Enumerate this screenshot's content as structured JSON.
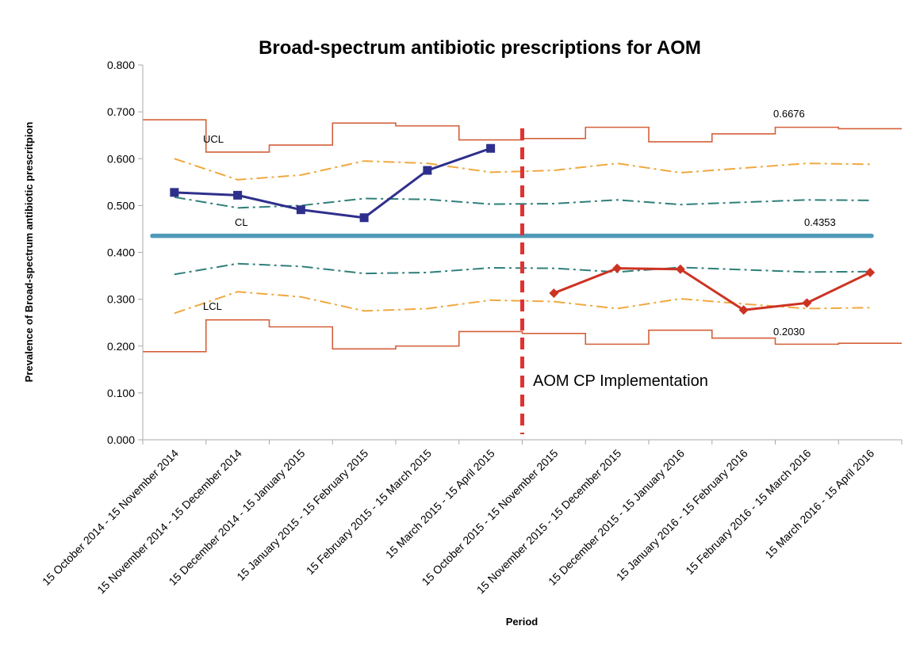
{
  "chart_data": {
    "type": "line",
    "title": "Broad-spectrum antibiotic prescriptions for AOM",
    "xlabel": "Period",
    "ylabel": "Prevalence of Broad-spectrum antibiotic prescritpion",
    "ylim": [
      0,
      0.8
    ],
    "ytick_step": 0.1,
    "y_tick_decimals": 3,
    "grid": false,
    "categories": [
      "15 October 2014 - 15 November 2014",
      "15 November 2014 - 15 December 2014",
      "15 December 2014 - 15 January 2015",
      "15 January 2015 - 15 February 2015",
      "15 February 2015 - 15 March 2015",
      "15 March 2015 - 15 April 2015",
      "15 October 2015 - 15 November 2015",
      "15 November 2015 - 15 December 2015",
      "15 December 2015 - 15 January 2016",
      "15 January 2016 - 15 February 2016",
      "15 February 2016 - 15 March 2016",
      "15 March 2016 - 15 April 2016"
    ],
    "series": [
      {
        "key": "pre",
        "role": "data",
        "color": "#2e2f8c",
        "marker": "square",
        "values": [
          0.528,
          0.522,
          0.491,
          0.474,
          0.575,
          0.622,
          null,
          null,
          null,
          null,
          null,
          null
        ]
      },
      {
        "key": "post",
        "role": "data",
        "color": "#cc3322",
        "marker": "diamond",
        "values": [
          null,
          null,
          null,
          null,
          null,
          null,
          0.313,
          0.366,
          0.364,
          0.277,
          0.292,
          0.357
        ]
      },
      {
        "key": "ucl",
        "role": "step",
        "color": "#d4603a",
        "values": [
          0.683,
          0.614,
          0.629,
          0.676,
          0.67,
          0.64,
          0.643,
          0.667,
          0.636,
          0.653,
          0.667,
          0.664
        ]
      },
      {
        "key": "lcl",
        "role": "step",
        "color": "#d4603a",
        "values": [
          0.188,
          0.256,
          0.241,
          0.194,
          0.2,
          0.231,
          0.227,
          0.204,
          0.234,
          0.217,
          0.204,
          0.206
        ]
      },
      {
        "key": "upper-2sigma",
        "role": "dashdot",
        "color": "#f0a840",
        "values": [
          0.6,
          0.555,
          0.565,
          0.595,
          0.59,
          0.571,
          0.575,
          0.59,
          0.57,
          0.58,
          0.59,
          0.588
        ]
      },
      {
        "key": "lower-2sigma",
        "role": "dashdot",
        "color": "#f0a840",
        "values": [
          0.27,
          0.316,
          0.305,
          0.275,
          0.28,
          0.298,
          0.295,
          0.28,
          0.301,
          0.29,
          0.28,
          0.282
        ]
      },
      {
        "key": "upper-1sigma",
        "role": "dashdot",
        "color": "#2f7f7a",
        "values": [
          0.518,
          0.495,
          0.5,
          0.515,
          0.513,
          0.503,
          0.504,
          0.512,
          0.502,
          0.507,
          0.512,
          0.511
        ]
      },
      {
        "key": "lower-1sigma",
        "role": "dashdot",
        "color": "#2f7f7a",
        "values": [
          0.353,
          0.376,
          0.37,
          0.355,
          0.357,
          0.367,
          0.366,
          0.358,
          0.368,
          0.363,
          0.358,
          0.359
        ]
      }
    ],
    "center_line": {
      "value": 0.4353,
      "color": "#4f9ab8"
    },
    "implementation_after_index": 5,
    "implementation_color": "#e03232",
    "annotations": {
      "ucl_label": "UCL",
      "cl_label": "CL",
      "lcl_label": "LCL",
      "ucl_value_label": "0.6676",
      "cl_value_label": "0.4353",
      "lcl_value_label": "0.2030",
      "implementation_label": "AOM CP Implementation"
    }
  }
}
